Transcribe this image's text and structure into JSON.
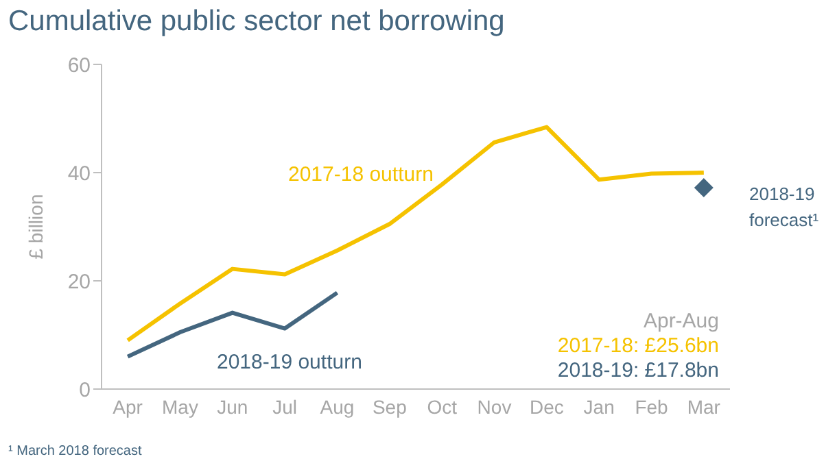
{
  "chart_data": {
    "type": "line",
    "title": "Cumulative public sector net borrowing",
    "ylabel": "£ billion",
    "categories": [
      "Apr",
      "May",
      "Jun",
      "Jul",
      "Aug",
      "Sep",
      "Oct",
      "Nov",
      "Dec",
      "Jan",
      "Feb",
      "Mar"
    ],
    "series": [
      {
        "name": "2017-18 outturn",
        "color": "#f5c200",
        "values": [
          9,
          15.8,
          22.2,
          21.2,
          25.6,
          30.5,
          37.8,
          45.6,
          48.4,
          38.7,
          39.8,
          40
        ]
      },
      {
        "name": "2018-19 outturn",
        "color": "#44667f",
        "values": [
          6,
          10.5,
          14.1,
          11.2,
          17.8,
          null,
          null,
          null,
          null,
          null,
          null,
          null
        ]
      },
      {
        "name": "2018-19 forecast¹",
        "type": "scatter",
        "marker": "diamond",
        "color": "#44667f",
        "values": [
          null,
          null,
          null,
          null,
          null,
          null,
          null,
          null,
          null,
          null,
          null,
          37.2
        ]
      }
    ],
    "ylim": [
      0,
      60
    ],
    "yticks": [
      0,
      20,
      40,
      60
    ],
    "legend": false,
    "marker": "none",
    "line_style": "solid",
    "annotations": [
      "Apr-Aug",
      "2017-18: £25.6bn",
      "2018-19: £17.8bn",
      "¹ March 2018 forecast"
    ]
  }
}
